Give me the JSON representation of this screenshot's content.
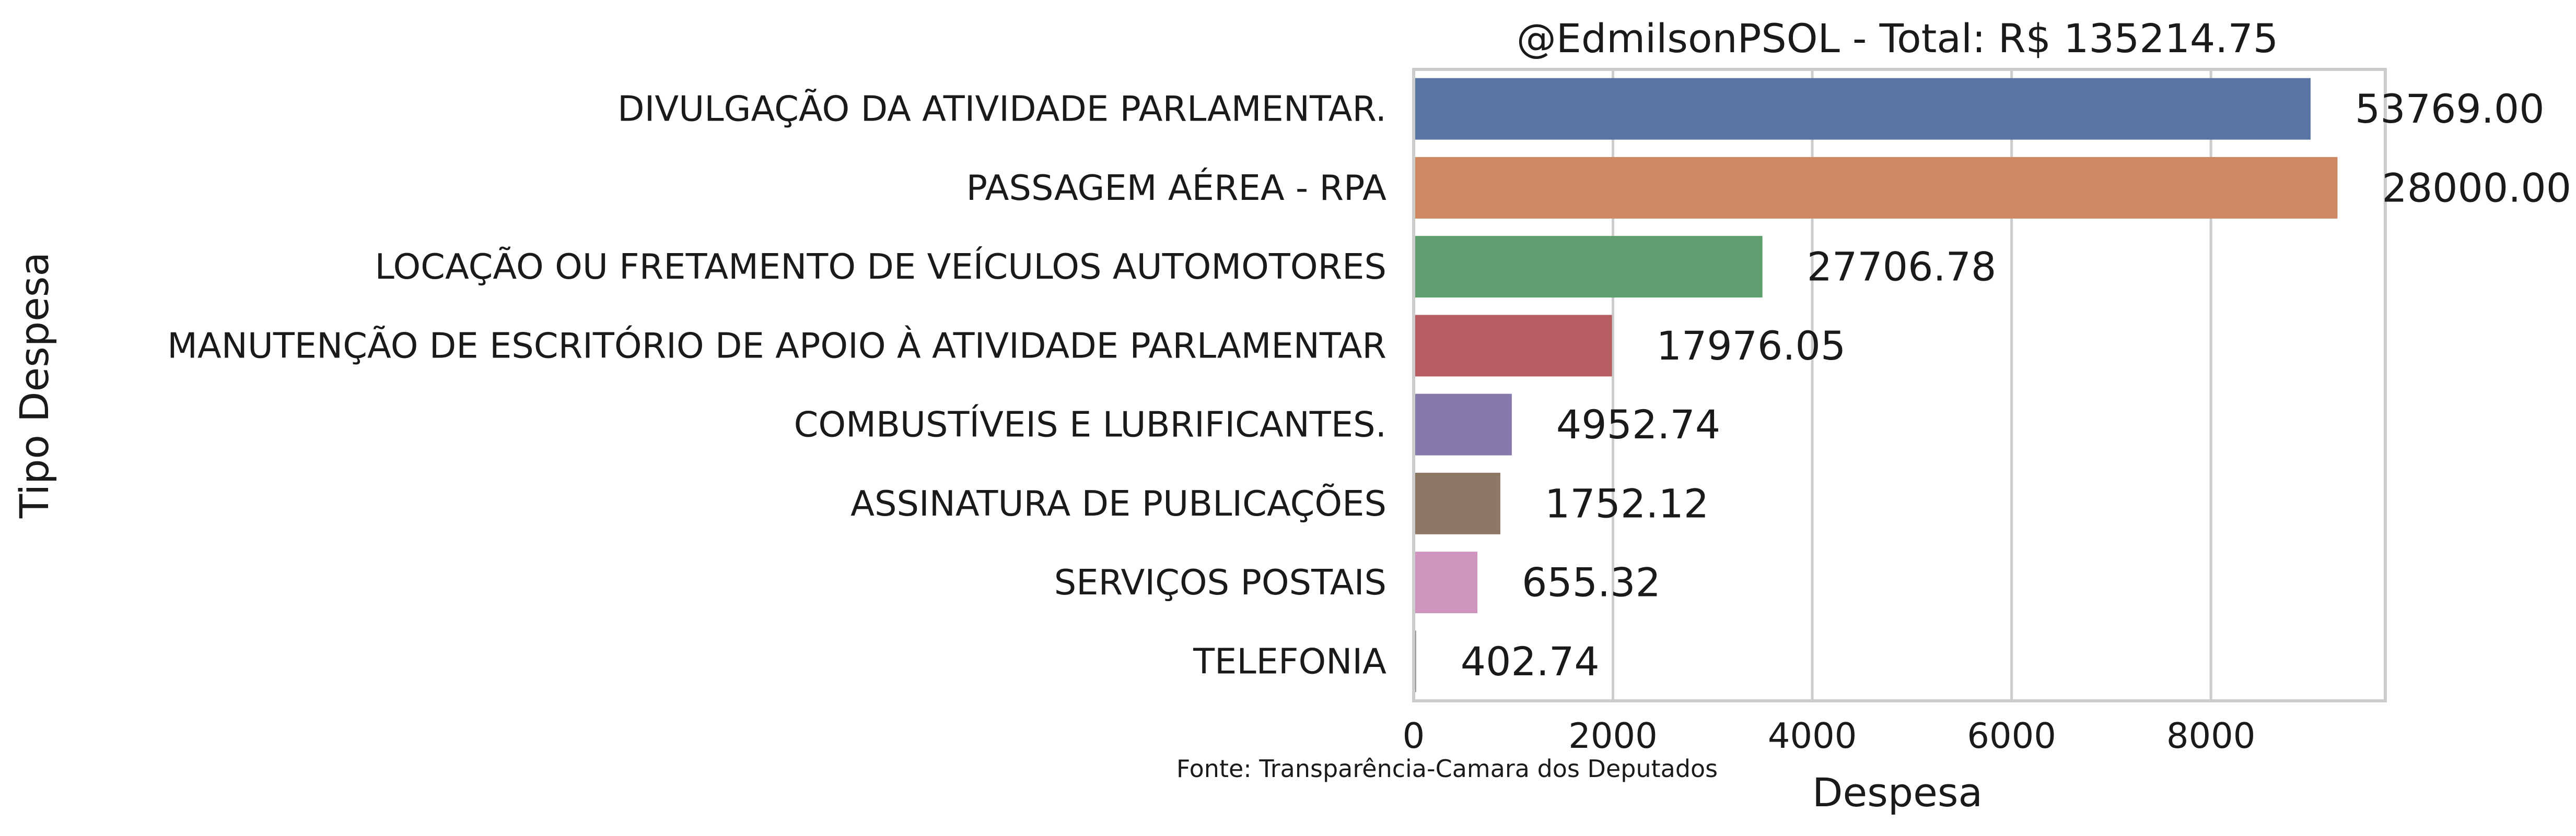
{
  "chart_data": {
    "type": "bar",
    "orientation": "horizontal",
    "title": "@EdmilsonPSOL - Total: R$ 135214.75",
    "xlabel": "Despesa",
    "ylabel": "Tipo Despesa",
    "source_note": "Fonte: Transparência-Camara dos Deputados",
    "xlim": [
      0,
      9750
    ],
    "xticks": [
      {
        "value": 0,
        "label": "0"
      },
      {
        "value": 2000,
        "label": "2000"
      },
      {
        "value": 4000,
        "label": "4000"
      },
      {
        "value": 6000,
        "label": "6000"
      },
      {
        "value": 8000,
        "label": "8000"
      }
    ],
    "grid": "vertical",
    "legend": "none",
    "categories": [
      "DIVULGAÇÃO DA ATIVIDADE PARLAMENTAR.",
      "PASSAGEM AÉREA - RPA",
      "LOCAÇÃO OU FRETAMENTO DE VEÍCULOS AUTOMOTORES",
      "MANUTENÇÃO DE ESCRITÓRIO DE APOIO À ATIVIDADE PARLAMENTAR",
      "COMBUSTÍVEIS E LUBRIFICANTES.",
      "ASSINATURA DE PUBLICAÇÕES",
      "SERVIÇOS POSTAIS",
      "TELEFONIA"
    ],
    "values": [
      9000,
      9270,
      3500,
      1990,
      985,
      870,
      640,
      25
    ],
    "value_labels": [
      "53769.00",
      "28000.00",
      "27706.78",
      "17976.05",
      "4952.74",
      "1752.12",
      "655.32",
      "402.74"
    ],
    "colors": [
      "#5875a4",
      "#cc8963",
      "#5f9e6e",
      "#b55d60",
      "#857aab",
      "#8d7866",
      "#d095bf",
      "#8c8c8c"
    ]
  }
}
